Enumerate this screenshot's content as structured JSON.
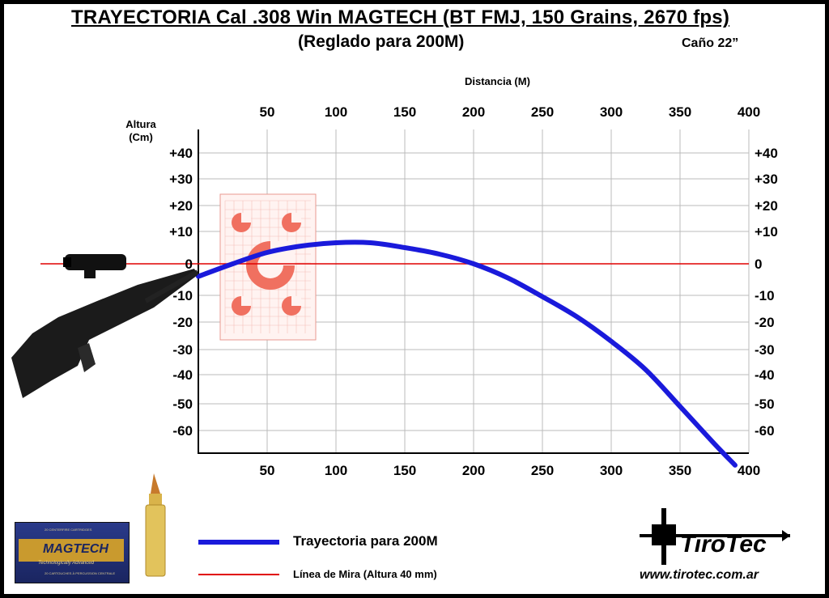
{
  "title": "TRAYECTORIA Cal .308 Win MAGTECH (BT FMJ, 150 Grains, 2670 fps)",
  "subtitle": "(Reglado para 200M)",
  "barrel": "Caño 22”",
  "colors": {
    "trajectory": "#1a1adb",
    "sight_line": "#e00000",
    "grid": "#bbbbbb",
    "frame": "#000000"
  },
  "legend": {
    "trajectory_label": "Trayectoria para 200M",
    "sight_line_label": "Línea de Mira (Altura  40 mm)"
  },
  "brand": {
    "name": "TiroTec",
    "url": "www.tirotec.com.ar",
    "icon": "crosshair-icon"
  },
  "ammo_box": {
    "logo": "MAGTECH",
    "tagline": "Technologically Advanced",
    "top_text": "20 CENTERFIRE CARTRIDGES",
    "bottom_text": "20 CARTOUCHES À PERCUSSION CENTRALE"
  },
  "chart_data": {
    "type": "line",
    "xlabel": "Distancia (M)",
    "ylabel": "Altura (Cm)",
    "x_ticks": [
      50,
      100,
      150,
      200,
      250,
      300,
      350,
      400
    ],
    "y_ticks": [
      "+40",
      "+30",
      "+20",
      "+10",
      "0",
      "-10",
      "-20",
      "-30",
      "-40",
      "-50",
      "-60"
    ],
    "xlim": [
      0,
      400
    ],
    "grid": true,
    "series": [
      {
        "name": "Trayectoria para 200M",
        "x": [
          0,
          25,
          50,
          75,
          100,
          125,
          150,
          175,
          200,
          225,
          250,
          275,
          300,
          325,
          350,
          375,
          390
        ],
        "y": [
          -4,
          0,
          3.5,
          5.5,
          6.5,
          6.5,
          5,
          3,
          0,
          -4.5,
          -10.5,
          -18,
          -27,
          -38,
          -51,
          -65,
          -73
        ]
      },
      {
        "name": "Línea de Mira (Altura  40 mm)",
        "x": [
          0,
          400
        ],
        "y": [
          0,
          0
        ]
      }
    ]
  }
}
